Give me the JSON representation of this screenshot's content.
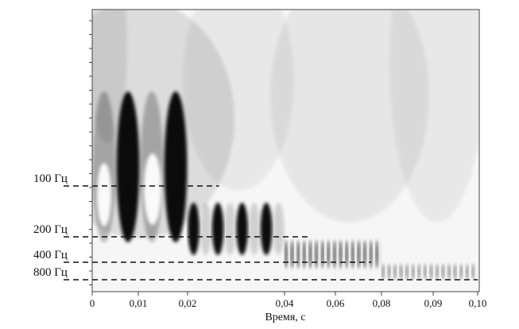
{
  "chart_data": {
    "type": "heatmap",
    "title": "",
    "xlabel": "Время, с",
    "ylabel": "",
    "xlim": [
      0,
      0.1
    ],
    "x_ticks": [
      "0",
      "0,01",
      "0,02",
      "0,04",
      "0,06",
      "0,08",
      "0,09",
      "0,10"
    ],
    "frequency_levels": [
      {
        "label": "100 Гц",
        "value": 100,
        "t_end": 0.0265
      },
      {
        "label": "200 Гц",
        "value": 200,
        "t_end": 0.0505
      },
      {
        "label": "400 Гц",
        "value": 400,
        "t_end": 0.0755
      },
      {
        "label": "800 Гц",
        "value": 800,
        "t_end": 0.1
      }
    ],
    "segments": [
      {
        "t_start": 0.0,
        "t_end": 0.02,
        "frequency_hz": 100
      },
      {
        "t_start": 0.02,
        "t_end": 0.04,
        "frequency_hz": 200
      },
      {
        "t_start": 0.04,
        "t_end": 0.08,
        "frequency_hz": 400
      },
      {
        "t_start": 0.08,
        "t_end": 0.1,
        "frequency_hz": 800
      }
    ],
    "grid": false,
    "colormap": "grayscale"
  }
}
